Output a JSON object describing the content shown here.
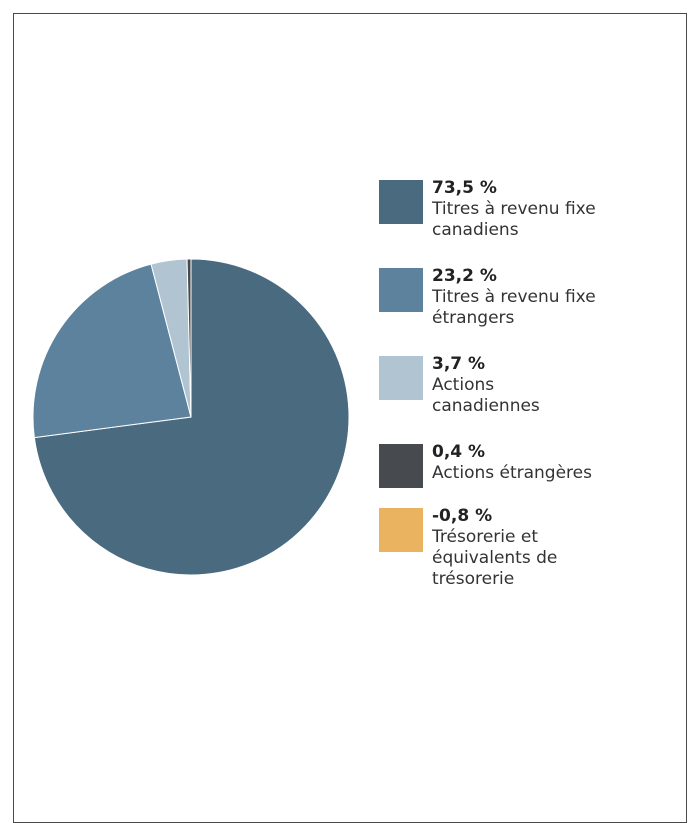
{
  "chart_data": {
    "type": "pie",
    "slices": [
      {
        "value_label": "73,5 %",
        "label": "Titres à revenu fixe canadiens",
        "label_lines": [
          "Titres à revenu fixe",
          "canadiens"
        ],
        "value": 73.5,
        "color": "#4a6a80"
      },
      {
        "value_label": "23,2 %",
        "label": "Titres à revenu fixe étrangers",
        "label_lines": [
          "Titres à revenu fixe",
          "étrangers"
        ],
        "value": 23.2,
        "color": "#5c829d"
      },
      {
        "value_label": "3,7 %",
        "label": "Actions canadiennes",
        "label_lines": [
          "Actions",
          "canadiennes"
        ],
        "value": 3.7,
        "color": "#b1c4d2"
      },
      {
        "value_label": "0,4 %",
        "label": "Actions étrangères",
        "label_lines": [
          "Actions étrangères"
        ],
        "value": 0.4,
        "color": "#474a4e"
      },
      {
        "value_label": "-0,8 %",
        "label": "Trésorerie et équivalents de trésorerie",
        "label_lines": [
          "Trésorerie et",
          "équivalents de",
          "trésorerie"
        ],
        "value": -0.8,
        "color": "#eab360"
      }
    ]
  }
}
